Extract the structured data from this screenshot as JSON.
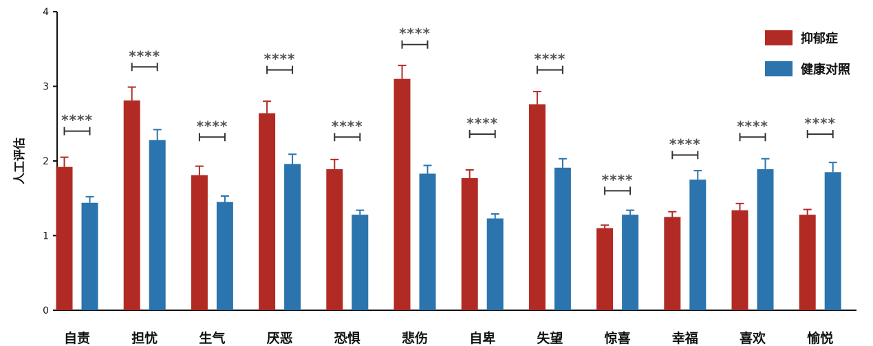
{
  "chart_data": {
    "type": "bar",
    "title": "",
    "xlabel": "",
    "ylabel": "人工评估",
    "ylim": [
      0,
      4
    ],
    "yticks": [
      0,
      1,
      2,
      3,
      4
    ],
    "grid": false,
    "legend_position": "top-right",
    "categories": [
      "自责",
      "担忧",
      "生气",
      "厌恶",
      "恐惧",
      "悲伤",
      "自卑",
      "失望",
      "惊喜",
      "幸福",
      "喜欢",
      "愉悦"
    ],
    "series": [
      {
        "name": "抑郁症",
        "color": "#b22a24",
        "values": [
          1.92,
          2.81,
          1.81,
          2.64,
          1.89,
          3.1,
          1.77,
          2.76,
          1.1,
          1.25,
          1.34,
          1.28
        ],
        "errors": [
          0.13,
          0.18,
          0.12,
          0.16,
          0.13,
          0.18,
          0.11,
          0.17,
          0.04,
          0.07,
          0.09,
          0.07
        ]
      },
      {
        "name": "健康对照",
        "color": "#2b74ad",
        "values": [
          1.44,
          2.28,
          1.45,
          1.96,
          1.28,
          1.83,
          1.23,
          1.91,
          1.28,
          1.75,
          1.89,
          1.85
        ],
        "errors": [
          0.08,
          0.14,
          0.08,
          0.13,
          0.06,
          0.11,
          0.06,
          0.12,
          0.06,
          0.12,
          0.14,
          0.13
        ]
      }
    ],
    "significance": {
      "label": "****",
      "bracket_y": [
        2.4,
        3.26,
        2.32,
        3.22,
        2.32,
        3.56,
        2.36,
        3.22,
        1.6,
        2.08,
        2.32,
        2.36
      ]
    }
  }
}
